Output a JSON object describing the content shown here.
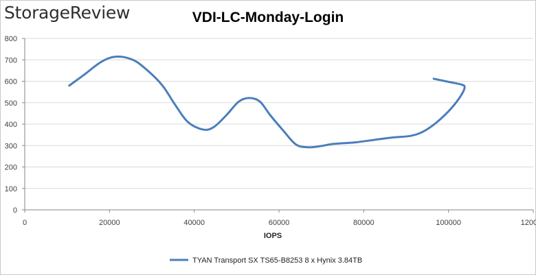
{
  "branding": {
    "logo_text": "StorageReview"
  },
  "chart_data": {
    "type": "line",
    "title": "VDI-LC-Monday-Login",
    "xlabel": "IOPS",
    "ylabel": "",
    "xlim": [
      0,
      120000
    ],
    "ylim": [
      0,
      800
    ],
    "xticks": [
      0,
      20000,
      40000,
      60000,
      80000,
      100000,
      120000
    ],
    "yticks": [
      0,
      100,
      200,
      300,
      400,
      500,
      600,
      700,
      800
    ],
    "grid": "horizontal",
    "legend_position": "bottom",
    "series": [
      {
        "name": "TYAN Transport SX TS65-B8253 8 x Hynix 3.84TB",
        "color": "#4a7ebb",
        "points": [
          [
            10500,
            580
          ],
          [
            14000,
            630
          ],
          [
            18000,
            690
          ],
          [
            21500,
            715
          ],
          [
            25500,
            700
          ],
          [
            29000,
            650
          ],
          [
            32500,
            580
          ],
          [
            35500,
            490
          ],
          [
            38500,
            410
          ],
          [
            42000,
            375
          ],
          [
            44500,
            385
          ],
          [
            47500,
            440
          ],
          [
            50500,
            505
          ],
          [
            53000,
            522
          ],
          [
            55500,
            505
          ],
          [
            58000,
            440
          ],
          [
            61000,
            370
          ],
          [
            64000,
            305
          ],
          [
            67000,
            292
          ],
          [
            70000,
            298
          ],
          [
            73000,
            308
          ],
          [
            78000,
            315
          ],
          [
            83000,
            328
          ],
          [
            87000,
            338
          ],
          [
            91000,
            345
          ],
          [
            94000,
            365
          ],
          [
            97000,
            405
          ],
          [
            100000,
            460
          ],
          [
            102500,
            520
          ],
          [
            103800,
            570
          ],
          [
            103000,
            585
          ],
          [
            100000,
            597
          ],
          [
            96500,
            612
          ]
        ]
      }
    ]
  }
}
